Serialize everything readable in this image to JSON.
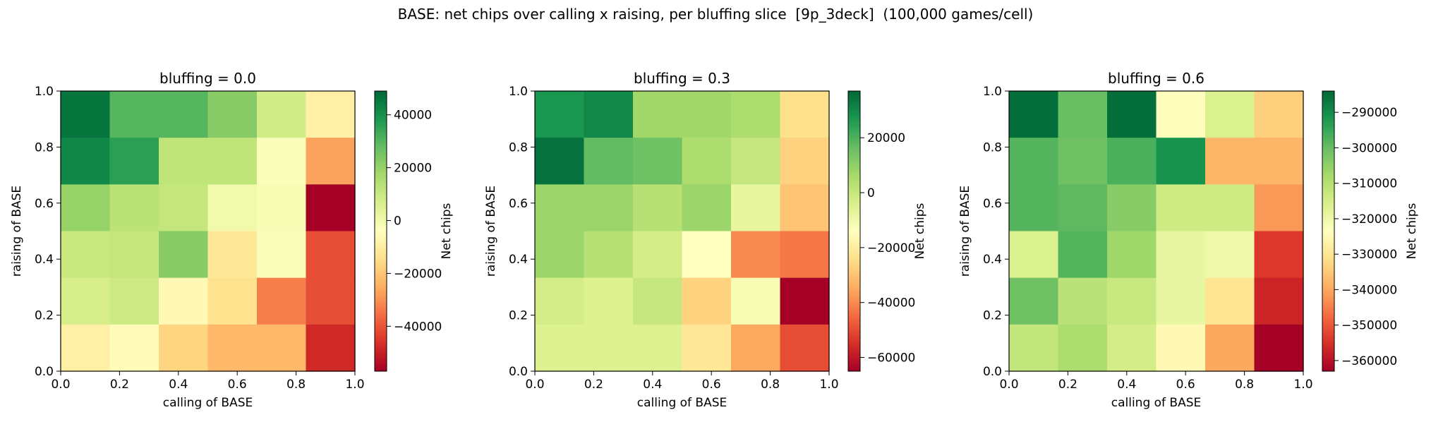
{
  "suptitle": "BASE: net chips over calling x raising, per bluffing slice  [9p_3deck]  (100,000 games/cell)",
  "colormap": [
    "#a50026",
    "#d73027",
    "#f46d43",
    "#fdae61",
    "#fee08b",
    "#ffffbf",
    "#d9ef8b",
    "#a6d96a",
    "#66bd63",
    "#1a9850",
    "#006837"
  ],
  "chart_data": [
    {
      "type": "heatmap",
      "title": "bluffing = 0.0",
      "xlabel": "calling of BASE",
      "ylabel": "raising of BASE",
      "xlim": [
        0,
        1
      ],
      "ylim": [
        0,
        1
      ],
      "xticks": [
        "0.0",
        "0.2",
        "0.4",
        "0.6",
        "0.8",
        "1.0"
      ],
      "yticks": [
        "0.0",
        "0.2",
        "0.4",
        "0.6",
        "0.8",
        "1.0"
      ],
      "colorbar_label": "Net chips",
      "vmin": -57000,
      "vmax": 49000,
      "colorbar_ticks": [
        40000,
        20000,
        0,
        -20000,
        -40000
      ],
      "colorbar_tick_labels": [
        "40000",
        "20000",
        "0",
        "−20000",
        "−40000"
      ],
      "values_top_to_bottom": [
        [
          46000,
          30000,
          30000,
          22000,
          8000,
          -9000
        ],
        [
          42000,
          36000,
          12000,
          12000,
          -3000,
          -27000
        ],
        [
          20000,
          13000,
          11000,
          0,
          -2000,
          -57000
        ],
        [
          10000,
          11000,
          22000,
          -12000,
          -3000,
          -41000
        ],
        [
          7000,
          9000,
          -6000,
          -14000,
          -33000,
          -41000
        ],
        [
          -9000,
          -5000,
          -17000,
          -23000,
          -23000,
          -48000
        ]
      ]
    },
    {
      "type": "heatmap",
      "title": "bluffing = 0.3",
      "xlabel": "calling of BASE",
      "ylabel": "raising of BASE",
      "xlim": [
        0,
        1
      ],
      "ylim": [
        0,
        1
      ],
      "xticks": [
        "0.0",
        "0.2",
        "0.4",
        "0.6",
        "0.8",
        "1.0"
      ],
      "yticks": [
        "0.0",
        "0.2",
        "0.4",
        "0.6",
        "0.8",
        "1.0"
      ],
      "colorbar_label": "Net chips",
      "vmin": -65000,
      "vmax": 37000,
      "colorbar_ticks": [
        20000,
        0,
        -20000,
        -40000,
        -60000
      ],
      "colorbar_tick_labels": [
        "20000",
        "0",
        "−20000",
        "−40000",
        "−60000"
      ],
      "values_top_to_bottom": [
        [
          27000,
          30000,
          7000,
          7000,
          5000,
          -24000
        ],
        [
          35000,
          17000,
          15000,
          5000,
          0,
          -27000
        ],
        [
          8000,
          8000,
          3000,
          8000,
          -8000,
          -30000
        ],
        [
          8000,
          3000,
          -3000,
          -14000,
          -40000,
          -43000
        ],
        [
          -3000,
          -5000,
          0,
          -27000,
          -12000,
          -65000
        ],
        [
          -5000,
          -5000,
          -5000,
          -22000,
          -35000,
          -50000
        ]
      ]
    },
    {
      "type": "heatmap",
      "title": "bluffing = 0.6",
      "xlabel": "calling of BASE",
      "ylabel": "raising of BASE",
      "xlim": [
        0,
        1
      ],
      "ylim": [
        0,
        1
      ],
      "xticks": [
        "0.0",
        "0.2",
        "0.4",
        "0.6",
        "0.8",
        "1.0"
      ],
      "yticks": [
        "0.0",
        "0.2",
        "0.4",
        "0.6",
        "0.8",
        "1.0"
      ],
      "colorbar_label": "Net chips",
      "vmin": -363000,
      "vmax": -284000,
      "colorbar_ticks": [
        -290000,
        -300000,
        -310000,
        -320000,
        -330000,
        -340000,
        -350000,
        -360000
      ],
      "colorbar_tick_labels": [
        "−290000",
        "−300000",
        "−310000",
        "−320000",
        "−330000",
        "−340000",
        "−350000",
        "−360000"
      ],
      "values_top_to_bottom": [
        [
          -285000,
          -300000,
          -285000,
          -323000,
          -316000,
          -334000
        ],
        [
          -298000,
          -301000,
          -297000,
          -291000,
          -338000,
          -338000
        ],
        [
          -298000,
          -299000,
          -304000,
          -314000,
          -314000,
          -342000
        ],
        [
          -316000,
          -298000,
          -307000,
          -319000,
          -320000,
          -354000
        ],
        [
          -301000,
          -311000,
          -313000,
          -319000,
          -330000,
          -357000
        ],
        [
          -312000,
          -309000,
          -315000,
          -325000,
          -340000,
          -363000
        ]
      ]
    }
  ]
}
